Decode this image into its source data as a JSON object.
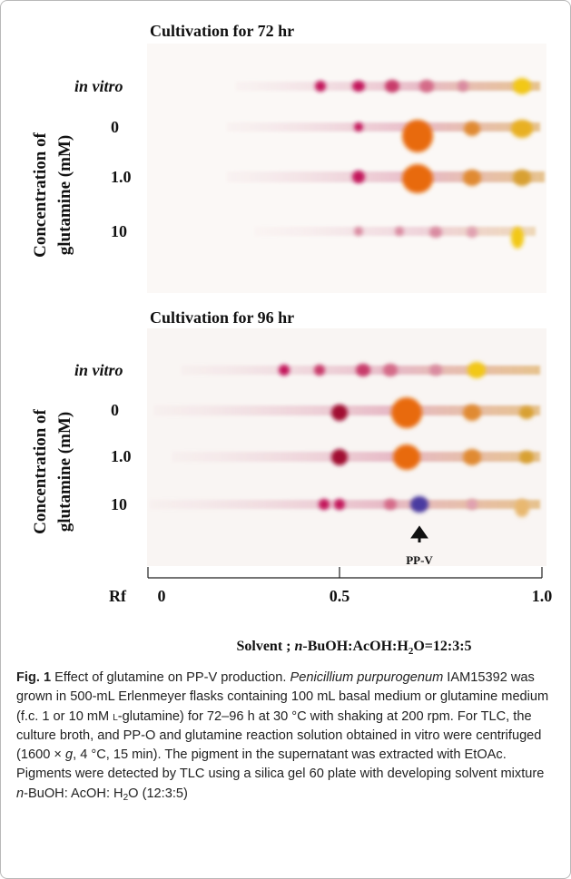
{
  "figure": {
    "panels": [
      {
        "title": "Cultivation for 72 hr",
        "rows": [
          "in vitro",
          "0",
          "1.0",
          "10"
        ],
        "y_label": [
          "Concentration of",
          "glutamine (mM)"
        ]
      },
      {
        "title": "Cultivation for 96 hr",
        "rows": [
          "in vitro",
          "0",
          "1.0",
          "10"
        ],
        "y_label": [
          "Concentration of",
          "glutamine (mM)"
        ]
      }
    ],
    "arrow_label": "PP-V",
    "axis": {
      "label": "Rf",
      "ticks": [
        "0",
        "0.5",
        "1.0"
      ]
    },
    "solvent": [
      {
        "text": "Solvent ; ",
        "style": "normal"
      },
      {
        "text": "n",
        "style": "italic"
      },
      {
        "text": "-BuOH:AcOH:H",
        "style": "normal"
      },
      {
        "text": "2",
        "style": "sub"
      },
      {
        "text": "O=12:3:5",
        "style": "normal"
      }
    ]
  },
  "caption": {
    "label": "Fig. 1",
    "runs": [
      {
        "text": " Effect of glutamine on PP-V production. ",
        "style": "normal"
      },
      {
        "text": "Penicillium purpurogenum",
        "style": "italic"
      },
      {
        "text": " IAM15392 was grown in 500-mL Erlenmeyer flasks containing 100 mL basal medium or glutamine medium (f.c. 1 or 10 mM ",
        "style": "normal"
      },
      {
        "text": "l",
        "style": "smallcaps"
      },
      {
        "text": "-glutamine) for 72–96 h at 30 °C with shaking at 200 rpm. For TLC, the culture broth, and PP-O and glutamine reaction solution obtained in vitro were centrifuged (1600 × ",
        "style": "normal"
      },
      {
        "text": "g",
        "style": "italic"
      },
      {
        "text": ", 4 °C, 15 min). The pigment in the supernatant was extracted with EtOAc. Pigments were detected by TLC using a silica gel 60 plate with developing solvent mixture ",
        "style": "normal"
      },
      {
        "text": "n",
        "style": "italic"
      },
      {
        "text": "-BuOH: AcOH: H",
        "style": "normal"
      },
      {
        "text": "2",
        "style": "sub"
      },
      {
        "text": "O (12:3:5)",
        "style": "normal"
      }
    ]
  }
}
